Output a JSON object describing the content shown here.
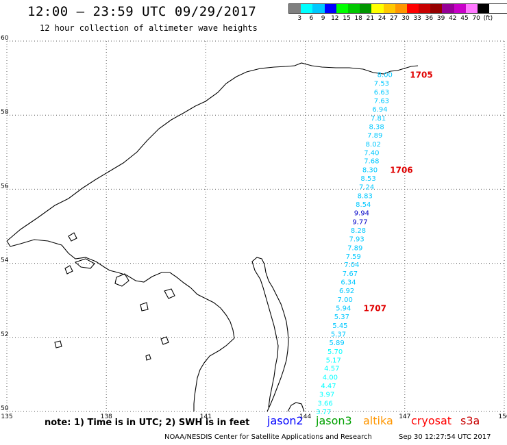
{
  "header": {
    "title": "12:00 – 23:59 UTC 09/29/2017",
    "subtitle": "12 hour collection of altimeter wave heights"
  },
  "legend": {
    "colors": [
      "#808080",
      "#00ffff",
      "#00c8ff",
      "#0000ff",
      "#00ff00",
      "#00c800",
      "#009600",
      "#ffff00",
      "#ffc800",
      "#ff9600",
      "#ff0000",
      "#c80000",
      "#960000",
      "#960096",
      "#c800c8",
      "#ff78ff",
      "#000000"
    ],
    "labels": [
      "3",
      "6",
      "9",
      "12",
      "15",
      "18",
      "21",
      "24",
      "27",
      "30",
      "33",
      "36",
      "39",
      "42",
      "45",
      "70",
      "(ft)"
    ]
  },
  "map": {
    "lon_range": [
      135,
      150
    ],
    "lat_range": [
      50,
      60
    ],
    "lon_ticks": [
      "135",
      "138",
      "141",
      "144",
      "147",
      "150"
    ],
    "lat_ticks": [
      "50",
      "52",
      "54",
      "56",
      "58",
      "60"
    ],
    "grid": "dotted",
    "coastline_color": "#000000"
  },
  "track": {
    "satellite": "cryosat",
    "readings": [
      {
        "lon": 146.4,
        "lat": 59.1,
        "value": "8.00",
        "color": "#00c8ff"
      },
      {
        "lon": 146.3,
        "lat": 58.87,
        "value": "7.53",
        "color": "#00c8ff"
      },
      {
        "lon": 146.3,
        "lat": 58.63,
        "value": "6.63",
        "color": "#00c8ff"
      },
      {
        "lon": 146.3,
        "lat": 58.4,
        "value": "7.63",
        "color": "#00c8ff"
      },
      {
        "lon": 146.25,
        "lat": 58.17,
        "value": "6.94",
        "color": "#00c8ff"
      },
      {
        "lon": 146.2,
        "lat": 57.93,
        "value": "7.81",
        "color": "#00c8ff"
      },
      {
        "lon": 146.15,
        "lat": 57.7,
        "value": "8.38",
        "color": "#00c8ff"
      },
      {
        "lon": 146.1,
        "lat": 57.47,
        "value": "7.89",
        "color": "#00c8ff"
      },
      {
        "lon": 146.05,
        "lat": 57.23,
        "value": "8.02",
        "color": "#00c8ff"
      },
      {
        "lon": 146.0,
        "lat": 57.0,
        "value": "7.40",
        "color": "#00c8ff"
      },
      {
        "lon": 146.0,
        "lat": 56.77,
        "value": "7.68",
        "color": "#00c8ff"
      },
      {
        "lon": 145.95,
        "lat": 56.53,
        "value": "8.30",
        "color": "#00c8ff"
      },
      {
        "lon": 145.9,
        "lat": 56.3,
        "value": "8.53",
        "color": "#00c8ff"
      },
      {
        "lon": 145.85,
        "lat": 56.07,
        "value": "7.24",
        "color": "#00c8ff"
      },
      {
        "lon": 145.8,
        "lat": 55.83,
        "value": "8.83",
        "color": "#00c8ff"
      },
      {
        "lon": 145.75,
        "lat": 55.6,
        "value": "8.54",
        "color": "#00c8ff"
      },
      {
        "lon": 145.7,
        "lat": 55.37,
        "value": "9.94",
        "color": "#0000c8"
      },
      {
        "lon": 145.65,
        "lat": 55.13,
        "value": "9.77",
        "color": "#0000c8"
      },
      {
        "lon": 145.6,
        "lat": 54.9,
        "value": "8.28",
        "color": "#00c8ff"
      },
      {
        "lon": 145.55,
        "lat": 54.67,
        "value": "7.93",
        "color": "#00c8ff"
      },
      {
        "lon": 145.5,
        "lat": 54.43,
        "value": "7.89",
        "color": "#00c8ff"
      },
      {
        "lon": 145.45,
        "lat": 54.2,
        "value": "7.59",
        "color": "#00c8ff"
      },
      {
        "lon": 145.4,
        "lat": 53.97,
        "value": "7.04",
        "color": "#00c8ff"
      },
      {
        "lon": 145.35,
        "lat": 53.73,
        "value": "7.67",
        "color": "#00c8ff"
      },
      {
        "lon": 145.3,
        "lat": 53.5,
        "value": "6.34",
        "color": "#00c8ff"
      },
      {
        "lon": 145.25,
        "lat": 53.27,
        "value": "6.92",
        "color": "#00c8ff"
      },
      {
        "lon": 145.2,
        "lat": 53.03,
        "value": "7.00",
        "color": "#00c8ff"
      },
      {
        "lon": 145.15,
        "lat": 52.8,
        "value": "5.94",
        "color": "#00c8ff"
      },
      {
        "lon": 145.1,
        "lat": 52.57,
        "value": "5.37",
        "color": "#00c8ff"
      },
      {
        "lon": 145.05,
        "lat": 52.33,
        "value": "5.45",
        "color": "#00c8ff"
      },
      {
        "lon": 145.0,
        "lat": 52.1,
        "value": "5.37",
        "color": "#00c8ff"
      },
      {
        "lon": 144.95,
        "lat": 51.87,
        "value": "5.89",
        "color": "#00c8ff"
      },
      {
        "lon": 144.9,
        "lat": 51.63,
        "value": "5.70",
        "color": "#00ffff"
      },
      {
        "lon": 144.85,
        "lat": 51.4,
        "value": "5.17",
        "color": "#00ffff"
      },
      {
        "lon": 144.8,
        "lat": 51.17,
        "value": "4.57",
        "color": "#00ffff"
      },
      {
        "lon": 144.75,
        "lat": 50.93,
        "value": "4.00",
        "color": "#00ffff"
      },
      {
        "lon": 144.7,
        "lat": 50.7,
        "value": "4.47",
        "color": "#00ffff"
      },
      {
        "lon": 144.65,
        "lat": 50.47,
        "value": "3.97",
        "color": "#00ffff"
      },
      {
        "lon": 144.6,
        "lat": 50.23,
        "value": "3.66",
        "color": "#00ffff"
      },
      {
        "lon": 144.55,
        "lat": 50.0,
        "value": "3.77",
        "color": "#00ffff"
      }
    ],
    "time_labels": [
      {
        "lon": 147.5,
        "lat": 59.1,
        "text": "1705"
      },
      {
        "lon": 146.9,
        "lat": 56.53,
        "text": "1706"
      },
      {
        "lon": 146.1,
        "lat": 52.8,
        "text": "1707"
      }
    ],
    "time_label_color": "#e00000"
  },
  "footer": {
    "note": "note: 1) Time is in UTC; 2) SWH is in feet",
    "satellites": [
      {
        "name": "jason2",
        "color": "#0000ff"
      },
      {
        "name": "jason3",
        "color": "#00a000"
      },
      {
        "name": "altika",
        "color": "#ff9600"
      },
      {
        "name": "cryosat",
        "color": "#ff0000"
      },
      {
        "name": "s3a",
        "color": "#c80000"
      }
    ],
    "credit": "NOAA/NESDIS Center for Satellite Applications and Research",
    "timestamp": "Sep 30 12:27:54 UTC 2017"
  }
}
